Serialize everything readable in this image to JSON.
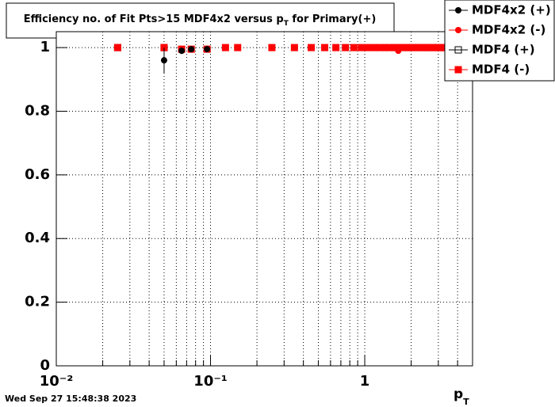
{
  "chart_data": {
    "type": "scatter",
    "title": [
      "Efficiency no. of Fit Pts>15 MDF4x2 versus p",
      "T",
      " for Primary(+)"
    ],
    "x_label": [
      "p",
      "T"
    ],
    "timestamp": "Wed Sep 27 15:48:38 2023",
    "xlog": true,
    "grid": true,
    "xlim": [
      0.01,
      5
    ],
    "ylim": [
      0,
      1.05
    ],
    "xticks": [
      {
        "value": 0.01,
        "label": "10⁻²"
      },
      {
        "value": 0.1,
        "label": "10⁻¹"
      },
      1
    ],
    "xminor": [
      0.02,
      0.03,
      0.04,
      0.05,
      0.06,
      0.07,
      0.08,
      0.09,
      0.2,
      0.3,
      0.4,
      0.5,
      0.6,
      0.7,
      0.8,
      0.9,
      2,
      3,
      4
    ],
    "yticks": [
      0,
      0.2,
      0.4,
      0.6,
      0.8,
      1
    ],
    "series": [
      {
        "name": "MDF4x2 (+)",
        "color": "#000000",
        "marker": "circle",
        "x": [
          0.05,
          0.065,
          0.075,
          0.095
        ],
        "values": [
          0.96,
          0.99,
          0.995,
          0.995
        ],
        "yerr": [
          0.04,
          0.01,
          0.005,
          0.005
        ]
      },
      {
        "name": "MDF4x2 (-)",
        "color": "#ff0000",
        "marker": "circle",
        "x": [
          1.65
        ],
        "values": [
          0.99
        ]
      },
      {
        "name": "MDF4 (+)",
        "color": "#000000",
        "marker": "open-square",
        "x": [
          0.025,
          0.05
        ],
        "values": [
          1,
          1
        ]
      },
      {
        "name": "MDF4 (-)",
        "color": "#ff0000",
        "marker": "square",
        "x": [
          0.025,
          0.05,
          0.065,
          0.075,
          0.095,
          0.125,
          0.15,
          0.25,
          0.35,
          0.45,
          0.55,
          0.65,
          0.75,
          0.85,
          0.95,
          1.05,
          1.15,
          1.25,
          1.35,
          1.45,
          1.55,
          1.65,
          1.75,
          1.85,
          1.95,
          2.05,
          2.15,
          2.25,
          2.35,
          2.45,
          2.55,
          2.65,
          2.75,
          2.85,
          2.95,
          3.05,
          3.15,
          3.25,
          3.35,
          3.45,
          3.55,
          3.65,
          3.75,
          3.85,
          3.95,
          4.05,
          4.15,
          4.25,
          4.35,
          4.45,
          4.55,
          4.65,
          4.75,
          4.85,
          4.95
        ],
        "values": [
          1,
          1,
          0.995,
          0.995,
          0.995,
          1,
          1,
          1,
          1,
          1,
          1,
          1,
          1,
          1,
          1,
          1,
          1,
          1,
          1,
          1,
          1,
          1,
          1,
          1,
          1,
          1,
          1,
          1,
          1,
          1,
          1,
          1,
          1,
          1,
          1,
          1,
          1,
          1,
          1,
          1,
          1,
          1,
          1,
          1,
          1,
          1,
          1,
          1,
          1,
          1,
          1,
          1,
          1,
          1,
          1
        ]
      }
    ]
  }
}
